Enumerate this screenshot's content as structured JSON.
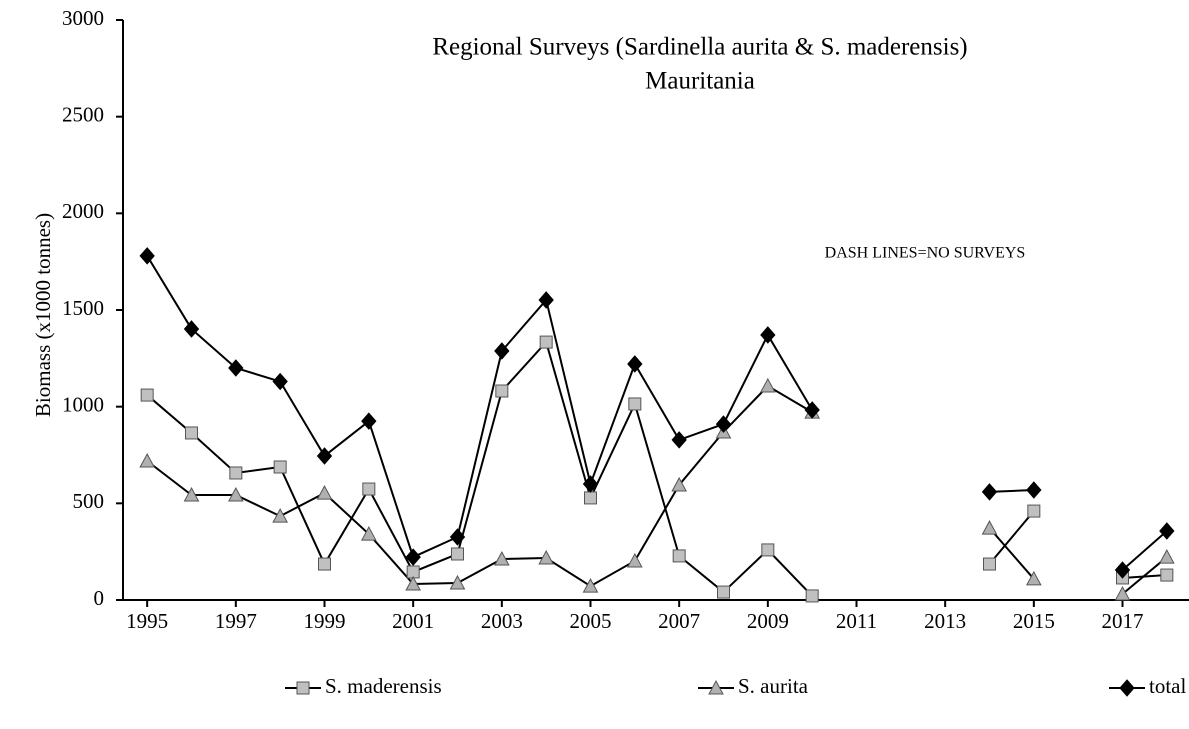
{
  "chart_data": {
    "type": "line",
    "title": "Regional Surveys (Sardinella aurita &  S. maderensis)",
    "subtitle": "Mauritania",
    "ylabel": "Biomass (x1000 tonnes)",
    "annotation": "DASH LINES=NO SURVEYS",
    "x": [
      1995,
      1996,
      1997,
      1998,
      1999,
      2000,
      2001,
      2002,
      2003,
      2004,
      2005,
      2006,
      2007,
      2008,
      2009,
      2010,
      2011,
      2012,
      2013,
      2014,
      2015,
      2016,
      2017,
      2018
    ],
    "series": [
      {
        "name": "S. maderensis",
        "color": "#c0c0c0",
        "marker": "square",
        "values": [
          1060,
          864,
          657,
          688,
          186,
          574,
          145,
          238,
          1081,
          1334,
          528,
          1014,
          228,
          41,
          259,
          21,
          null,
          null,
          null,
          186,
          460,
          null,
          114,
          129
        ]
      },
      {
        "name": "S. aurita",
        "color": "#b0b0b0",
        "marker": "triangle",
        "values": [
          719,
          543,
          543,
          434,
          553,
          341,
          83,
          88,
          212,
          217,
          72,
          202,
          595,
          869,
          1107,
          972,
          null,
          null,
          null,
          372,
          109,
          null,
          31,
          222
        ]
      },
      {
        "name": "total",
        "color": "#000000",
        "marker": "diamond",
        "values": [
          1780,
          1402,
          1200,
          1130,
          745,
          925,
          222,
          326,
          1288,
          1552,
          600,
          1221,
          828,
          910,
          1371,
          983,
          null,
          null,
          null,
          559,
          569,
          null,
          155,
          357
        ]
      }
    ],
    "xlim": [
      1994.5,
      2018.5
    ],
    "xticks": [
      1995,
      1997,
      1999,
      2001,
      2003,
      2005,
      2007,
      2009,
      2011,
      2013,
      2015,
      2017
    ],
    "ylim": [
      0,
      3000
    ],
    "yticks": [
      0,
      500,
      1000,
      1500,
      2000,
      2500,
      3000
    ],
    "legend": "bottom"
  }
}
